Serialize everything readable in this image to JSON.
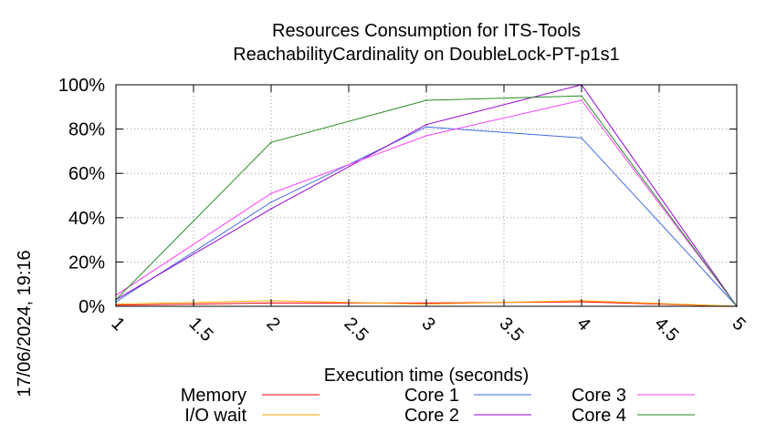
{
  "chart_data": {
    "type": "line",
    "title": [
      "Resources Consumption for ITS-Tools",
      "ReachabilityCardinality on DoubleLock-PT-p1s1"
    ],
    "xlabel": "Execution time (seconds)",
    "ylabel": "",
    "timestamp": "17/06/2024, 19:16",
    "xlim": [
      1,
      5
    ],
    "ylim": [
      0,
      100
    ],
    "xticks": [
      1,
      1.5,
      2,
      2.5,
      3,
      3.5,
      4,
      4.5,
      5
    ],
    "xtick_labels": [
      "1",
      "1.5",
      "2",
      "2.5",
      "3",
      "3.5",
      "4",
      "4.5",
      "5"
    ],
    "yticks": [
      0,
      20,
      40,
      60,
      80,
      100
    ],
    "ytick_labels": [
      "0%",
      "20%",
      "40%",
      "60%",
      "80%",
      "100%"
    ],
    "grid": true,
    "legend_position": "bottom",
    "x": [
      1,
      2,
      3,
      4,
      5
    ],
    "series": [
      {
        "name": "Memory",
        "color": "#ff0000",
        "values": [
          0.5,
          1.5,
          1.5,
          2,
          0
        ]
      },
      {
        "name": "I/O wait",
        "color": "#ffa500",
        "values": [
          1,
          2.5,
          1,
          2.5,
          0
        ]
      },
      {
        "name": "Core 1",
        "color": "#4169e1",
        "values": [
          2,
          47,
          81,
          76,
          0
        ]
      },
      {
        "name": "Core 2",
        "color": "#9400d3",
        "values": [
          3,
          44,
          82,
          100,
          0
        ]
      },
      {
        "name": "Core 3",
        "color": "#ff40ff",
        "values": [
          5,
          51,
          77,
          93,
          0
        ]
      },
      {
        "name": "Core 4",
        "color": "#228b22",
        "values": [
          3,
          74,
          93,
          95,
          0
        ]
      }
    ]
  }
}
